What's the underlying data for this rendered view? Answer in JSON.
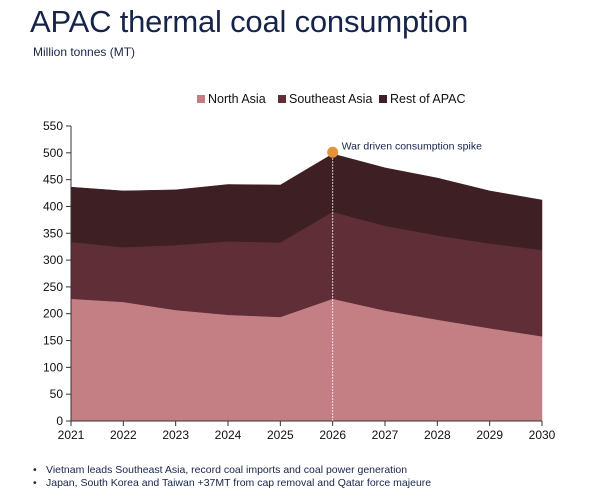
{
  "header": {
    "title": "APAC thermal coal consumption",
    "subtitle": "Million tonnes (MT)"
  },
  "chart_data": {
    "type": "area",
    "stacked": true,
    "categories": [
      "2021",
      "2022",
      "2023",
      "2024",
      "2025",
      "2026",
      "2027",
      "2028",
      "2029",
      "2030"
    ],
    "series": [
      {
        "name": "North Asia",
        "color": "#c47f85",
        "values": [
          228,
          222,
          207,
          198,
          194,
          228,
          206,
          189,
          173,
          158
        ]
      },
      {
        "name": "Southeast Asia",
        "color": "#5f2e36",
        "values": [
          106,
          102,
          121,
          137,
          139,
          162,
          158,
          157,
          158,
          161
        ]
      },
      {
        "name": "Rest of APAC",
        "color": "#3e1f24",
        "values": [
          102,
          105,
          103,
          106,
          107,
          108,
          108,
          107,
          98,
          93
        ]
      }
    ],
    "ylim": [
      0,
      550
    ],
    "yticks": [
      "0",
      "50",
      "100",
      "150",
      "200",
      "250",
      "300",
      "350",
      "400",
      "450",
      "500",
      "550"
    ],
    "legend_position": "top",
    "annotation": {
      "label": "War driven consumption spike",
      "x": "2026",
      "y": 501,
      "marker_color": "#e8913c"
    }
  },
  "notes": [
    "Vietnam leads Southeast Asia, record coal imports and coal power generation",
    "Japan, South Korea and Taiwan +37MT from cap removal and Qatar force majeure"
  ]
}
